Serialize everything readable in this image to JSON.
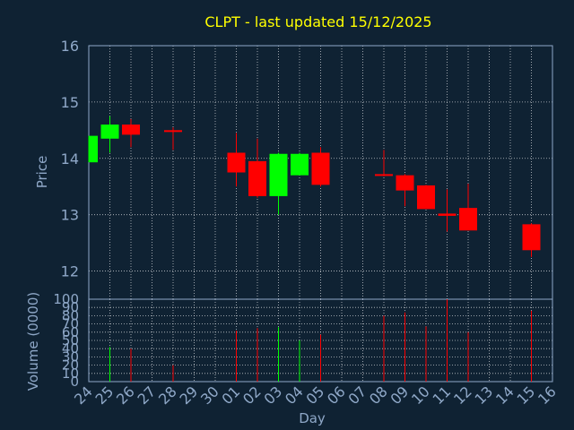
{
  "title": "CLPT - last updated 15/12/2025",
  "colors": {
    "background": "#0f2233",
    "title": "#ffff00",
    "axis_text": "#8fa8c8",
    "grid": "#ffffff",
    "up": "#00ff00",
    "down": "#ff0000"
  },
  "chart_data": [
    {
      "type": "candlestick",
      "ylabel": "Price",
      "ylim": [
        11.5,
        16
      ],
      "yticks": [
        12,
        13,
        14,
        15,
        16
      ],
      "x_tick_labels": [
        "24",
        "25",
        "26",
        "27",
        "28",
        "29",
        "30",
        "01",
        "02",
        "03",
        "04",
        "05",
        "06",
        "07",
        "08",
        "09",
        "10",
        "11",
        "12",
        "13",
        "14",
        "15",
        "16"
      ],
      "grid": true,
      "candles": [
        {
          "day": "24",
          "open": 13.93,
          "high": 14.4,
          "low": 13.93,
          "close": 14.4
        },
        {
          "day": "25",
          "open": 14.35,
          "high": 14.75,
          "low": 14.1,
          "close": 14.6
        },
        {
          "day": "26",
          "open": 14.6,
          "high": 14.7,
          "low": 14.2,
          "close": 14.42
        },
        {
          "day": "28",
          "open": 14.5,
          "high": 14.55,
          "low": 14.15,
          "close": 14.48
        },
        {
          "day": "01",
          "open": 14.1,
          "high": 14.45,
          "low": 13.5,
          "close": 13.75
        },
        {
          "day": "02",
          "open": 13.95,
          "high": 14.35,
          "low": 13.3,
          "close": 13.33
        },
        {
          "day": "03",
          "open": 13.33,
          "high": 14.1,
          "low": 13.0,
          "close": 14.08
        },
        {
          "day": "04",
          "open": 13.7,
          "high": 14.1,
          "low": 13.7,
          "close": 14.08
        },
        {
          "day": "05",
          "open": 14.1,
          "high": 14.2,
          "low": 13.5,
          "close": 13.53
        },
        {
          "day": "08",
          "open": 13.72,
          "high": 14.15,
          "low": 13.68,
          "close": 13.7
        },
        {
          "day": "09",
          "open": 13.7,
          "high": 13.72,
          "low": 13.15,
          "close": 13.43
        },
        {
          "day": "10",
          "open": 13.52,
          "high": 13.53,
          "low": 13.1,
          "close": 13.1
        },
        {
          "day": "11",
          "open": 13.02,
          "high": 13.45,
          "low": 12.7,
          "close": 12.98
        },
        {
          "day": "12",
          "open": 13.12,
          "high": 13.55,
          "low": 12.72,
          "close": 12.72
        },
        {
          "day": "15",
          "open": 12.83,
          "high": 12.85,
          "low": 12.25,
          "close": 12.37
        }
      ]
    },
    {
      "type": "bar",
      "xlabel": "Day",
      "ylabel": "Volume (0000)",
      "ylim": [
        0,
        100
      ],
      "yticks": [
        0,
        10,
        20,
        30,
        40,
        50,
        60,
        70,
        80,
        90,
        100
      ],
      "x_tick_labels": [
        "24",
        "25",
        "26",
        "27",
        "28",
        "29",
        "30",
        "01",
        "02",
        "03",
        "04",
        "05",
        "06",
        "07",
        "08",
        "09",
        "10",
        "11",
        "12",
        "13",
        "14",
        "15",
        "16"
      ],
      "grid": true,
      "bars": [
        {
          "day": "24",
          "value": 0,
          "dir": "up"
        },
        {
          "day": "25",
          "value": 42,
          "dir": "up"
        },
        {
          "day": "26",
          "value": 40,
          "dir": "down"
        },
        {
          "day": "28",
          "value": 20,
          "dir": "down"
        },
        {
          "day": "01",
          "value": 62,
          "dir": "down"
        },
        {
          "day": "02",
          "value": 65,
          "dir": "down"
        },
        {
          "day": "03",
          "value": 66,
          "dir": "up"
        },
        {
          "day": "04",
          "value": 50,
          "dir": "up"
        },
        {
          "day": "05",
          "value": 57,
          "dir": "down"
        },
        {
          "day": "08",
          "value": 80,
          "dir": "down"
        },
        {
          "day": "09",
          "value": 84,
          "dir": "down"
        },
        {
          "day": "10",
          "value": 67,
          "dir": "down"
        },
        {
          "day": "11",
          "value": 100,
          "dir": "down"
        },
        {
          "day": "12",
          "value": 60,
          "dir": "down"
        },
        {
          "day": "15",
          "value": 86,
          "dir": "down"
        }
      ]
    }
  ]
}
